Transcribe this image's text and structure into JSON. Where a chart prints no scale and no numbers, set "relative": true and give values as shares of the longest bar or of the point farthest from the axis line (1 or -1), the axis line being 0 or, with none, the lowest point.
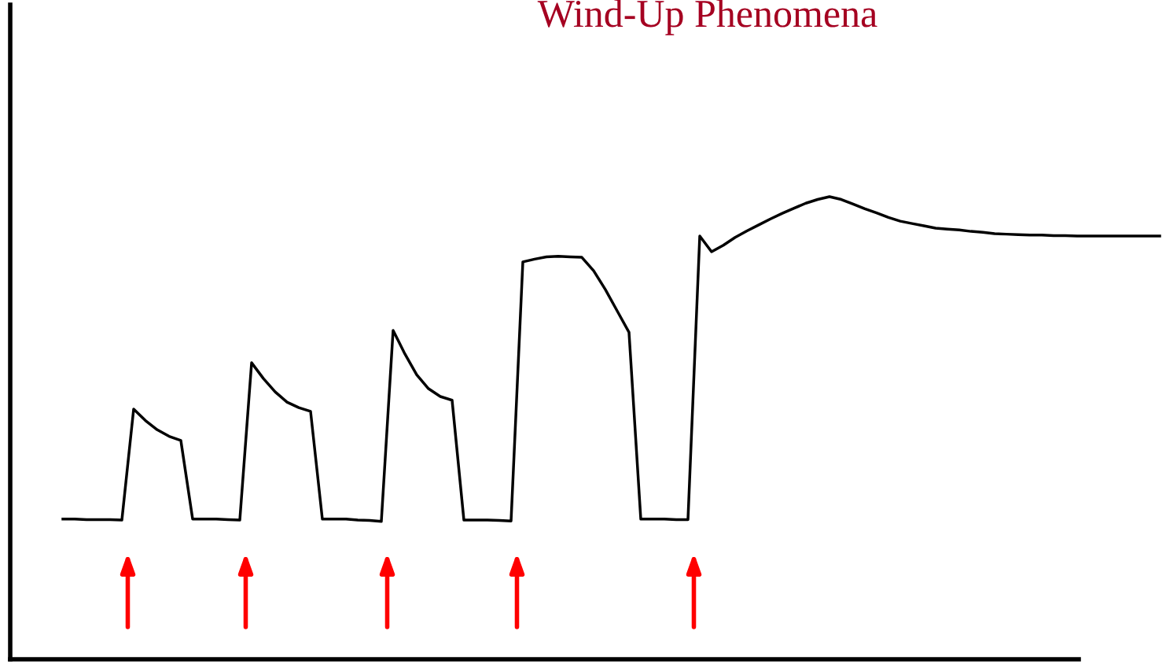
{
  "chart_data": {
    "type": "line",
    "title": "Wind-Up Phenomena",
    "relative": true,
    "categories": [
      null,
      null,
      null,
      null,
      null,
      null,
      null,
      null,
      null,
      null,
      null,
      null,
      null,
      null,
      null,
      null,
      null,
      null,
      null,
      null,
      null,
      null,
      null,
      null,
      null,
      null,
      null,
      null,
      null,
      null,
      null,
      null,
      null,
      null,
      null,
      null,
      null,
      null,
      null,
      null,
      null,
      null,
      null,
      null,
      null,
      null,
      null,
      null,
      null,
      null,
      null,
      null,
      null,
      null,
      null,
      null,
      null,
      null,
      null,
      null,
      null,
      null,
      null,
      null,
      null,
      null,
      null,
      null,
      null,
      null,
      null,
      null,
      null,
      null,
      null,
      null,
      null,
      null,
      null,
      null,
      null,
      null,
      null,
      null,
      null,
      null,
      null,
      null,
      null,
      null,
      null,
      null,
      null,
      null
    ],
    "series": [
      {
        "color": "#000000",
        "values": [
          0.303,
          0.303,
          0.302,
          0.302,
          0.302,
          0.301,
          0.541,
          0.516,
          0.496,
          0.482,
          0.473,
          0.303,
          0.303,
          0.303,
          0.302,
          0.301,
          0.641,
          0.607,
          0.578,
          0.556,
          0.544,
          0.536,
          0.303,
          0.303,
          0.303,
          0.301,
          0.3,
          0.298,
          0.711,
          0.66,
          0.615,
          0.585,
          0.568,
          0.56,
          0.301,
          0.301,
          0.301,
          0.3,
          0.299,
          0.859,
          0.865,
          0.87,
          0.871,
          0.87,
          0.869,
          0.84,
          0.799,
          0.753,
          0.707,
          0.303,
          0.303,
          0.303,
          0.302,
          0.302,
          0.915,
          0.881,
          0.895,
          0.912,
          0.926,
          0.939,
          0.952,
          0.964,
          0.975,
          0.986,
          0.994,
          1,
          0.994,
          0.984,
          0.974,
          0.965,
          0.955,
          0.947,
          0.942,
          0.937,
          0.932,
          0.93,
          0.928,
          0.925,
          0.923,
          0.92,
          0.919,
          0.918,
          0.917,
          0.917,
          0.916,
          0.916,
          0.915,
          0.915,
          0.915,
          0.915,
          0.915,
          0.915,
          0.915,
          0.915
        ]
      }
    ]
  }
}
